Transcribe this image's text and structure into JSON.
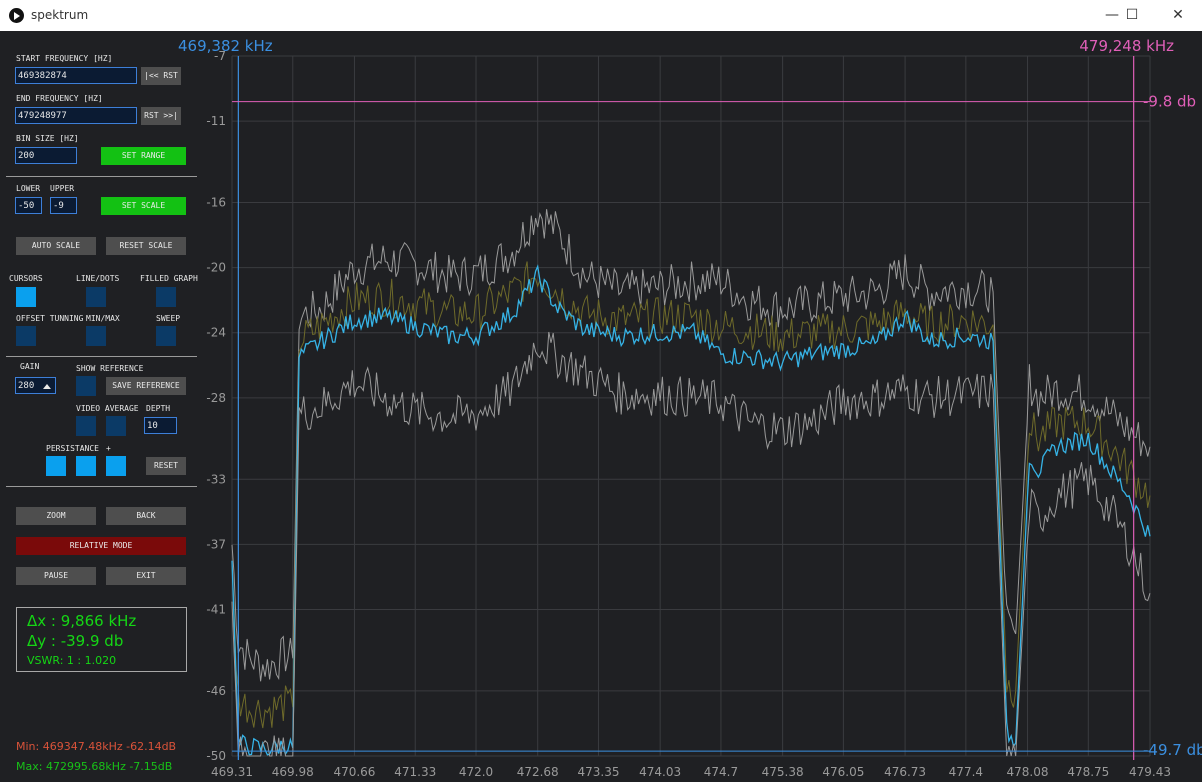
{
  "window": {
    "title": "spektrum",
    "minimize": "—",
    "maximize": "☐",
    "close": "✕"
  },
  "sidebar": {
    "start_label": "START FREQUENCY [HZ]",
    "start_value": "469382874",
    "start_rst": "|<< RST",
    "end_label": "END FREQUENCY [HZ]",
    "end_value": "479248977",
    "end_rst": "RST >>|",
    "bin_label": "BIN SIZE [HZ]",
    "bin_value": "200",
    "set_range": "SET RANGE",
    "lower_label": "LOWER",
    "upper_label": "UPPER",
    "lower_value": "-50",
    "upper_value": "-9",
    "set_scale": "SET SCALE",
    "auto_scale": "AUTO SCALE",
    "reset_scale": "RESET SCALE",
    "cursors_label": "CURSORS",
    "line_dots_label": "LINE/DOTS",
    "filled_graph_label": "FILLED GRAPH",
    "offset_label": "OFFSET TUNNING",
    "minmax_label": "MIN/MAX",
    "sweep_label": "SWEEP",
    "gain_label": "GAIN",
    "gain_value": "280",
    "show_reference_label": "SHOW REFERENCE",
    "save_reference": "SAVE REFERENCE",
    "video_average_label": "VIDEO AVERAGE",
    "depth_label": "DEPTH",
    "depth_value": "10",
    "persistance_label": "PERSISTANCE",
    "plus_label": "+",
    "reset": "RESET",
    "zoom": "ZOOM",
    "back": "BACK",
    "relative_mode": "RELATIVE MODE",
    "pause": "PAUSE",
    "exit": "EXIT",
    "toggles": {
      "cursors": true,
      "line_dots": false,
      "filled_graph": false,
      "offset": false,
      "minmax": false,
      "sweep": false,
      "show_reference": false,
      "video_average_1": false,
      "video_average_2": false,
      "persist_1": true,
      "persist_2": true,
      "persist_3": true
    }
  },
  "readout": {
    "dx": "Δx : 9,866 kHz",
    "dy": "Δy : -39.9 db",
    "vswr": "VSWR: 1 : 1.020",
    "min": "Min: 469347.48kHz -62.14dB",
    "max": "Max: 472995.68kHz -7.15dB"
  },
  "colors": {
    "blue_cursor": "#3b8fe0",
    "pink_cursor": "#e05fb8",
    "trace": "#36b3e6",
    "minmax": "#9a9a9a",
    "average": "#6e6a2a",
    "min_text": "#d9533a",
    "max_text": "#18c118"
  },
  "chart_data": {
    "type": "line",
    "xlim": [
      469.31,
      479.43
    ],
    "ylim": [
      -50,
      -7
    ],
    "x_ticks": [
      "469.31",
      "469.98",
      "470.66",
      "471.33",
      "472.0",
      "472.68",
      "473.35",
      "474.03",
      "474.7",
      "475.38",
      "476.05",
      "476.73",
      "477.4",
      "478.08",
      "478.75",
      "479.43"
    ],
    "y_ticks": [
      "-7",
      "-11",
      "-16",
      "-20",
      "-24",
      "-28",
      "-33",
      "-37",
      "-41",
      "-46",
      "-50"
    ],
    "grid": true,
    "cursor_start_label": "469,382 kHz",
    "cursor_end_label": "479,248 kHz",
    "cursor_start_x": 469.38,
    "cursor_end_x": 479.25,
    "cursor_top_label": "-9.8 db",
    "cursor_bottom_label": "-49.7 db",
    "cursor_top_y": -9.8,
    "cursor_bottom_y": -49.7,
    "series": [
      {
        "role": "max",
        "x": [
          469.31,
          469.38,
          469.5,
          469.7,
          469.9,
          469.98,
          470.05,
          470.3,
          470.66,
          471.0,
          471.33,
          471.7,
          472.0,
          472.4,
          472.68,
          472.9,
          473.2,
          473.6,
          474.03,
          474.4,
          474.7,
          475.0,
          475.38,
          475.7,
          476.05,
          476.4,
          476.73,
          477.0,
          477.4,
          477.7,
          477.85,
          477.95,
          478.1,
          478.2,
          478.4,
          478.75,
          479.0,
          479.2,
          479.43
        ],
        "values": [
          -37,
          -43,
          -44,
          -44.5,
          -43.8,
          -44,
          -23,
          -22.5,
          -20,
          -19.5,
          -19.8,
          -20.5,
          -20.4,
          -19,
          -16.5,
          -17.8,
          -20.5,
          -21.5,
          -21.2,
          -20.8,
          -20.8,
          -22,
          -22.5,
          -22.2,
          -21.8,
          -21.5,
          -20.2,
          -21.5,
          -21.2,
          -21.5,
          -42,
          -42.5,
          -27,
          -28,
          -27.5,
          -27.8,
          -29,
          -30,
          -31
        ]
      },
      {
        "role": "average",
        "x": [
          469.31,
          469.38,
          469.5,
          469.7,
          469.9,
          469.98,
          470.05,
          470.3,
          470.66,
          471.0,
          471.33,
          471.7,
          472.0,
          472.4,
          472.68,
          472.9,
          473.2,
          473.6,
          474.03,
          474.4,
          474.7,
          475.0,
          475.38,
          475.7,
          476.05,
          476.4,
          476.73,
          477.0,
          477.4,
          477.7,
          477.85,
          477.95,
          478.1,
          478.2,
          478.4,
          478.75,
          479.0,
          479.2,
          479.43
        ],
        "values": [
          -39,
          -46.5,
          -47,
          -47.2,
          -46.8,
          -47,
          -24.5,
          -23.5,
          -22,
          -21.8,
          -22.2,
          -22.8,
          -22.8,
          -21.5,
          -20.3,
          -21.5,
          -22.8,
          -23.2,
          -23,
          -23,
          -23.6,
          -23.8,
          -24.2,
          -24,
          -23.8,
          -23.5,
          -22.8,
          -23.5,
          -23.2,
          -23.5,
          -45.5,
          -46,
          -29.5,
          -30.5,
          -29.5,
          -29.5,
          -31,
          -32.5,
          -34
        ]
      },
      {
        "role": "live",
        "x": [
          469.31,
          469.38,
          469.5,
          469.7,
          469.9,
          469.98,
          470.05,
          470.3,
          470.66,
          471.0,
          471.33,
          471.7,
          472.0,
          472.4,
          472.68,
          472.9,
          473.2,
          473.6,
          474.03,
          474.4,
          474.7,
          475.0,
          475.38,
          475.7,
          476.05,
          476.4,
          476.73,
          477.0,
          477.4,
          477.7,
          477.85,
          477.95,
          478.1,
          478.2,
          478.4,
          478.75,
          479.0,
          479.2,
          479.43
        ],
        "values": [
          -38,
          -49.2,
          -49.4,
          -49.6,
          -49.3,
          -49.5,
          -25.5,
          -24.5,
          -23.2,
          -23,
          -23.6,
          -24.2,
          -24.2,
          -22.8,
          -20.5,
          -22.5,
          -23.8,
          -24.2,
          -24,
          -24,
          -25.3,
          -25.5,
          -25.8,
          -25.3,
          -25,
          -24.7,
          -23,
          -24.5,
          -24.2,
          -24.5,
          -48.5,
          -49.2,
          -31.5,
          -32.5,
          -31,
          -30.5,
          -32.5,
          -34,
          -36.5
        ]
      },
      {
        "role": "min",
        "x": [
          469.31,
          469.38,
          469.5,
          469.7,
          469.9,
          469.98,
          470.05,
          470.3,
          470.66,
          471.0,
          471.33,
          471.7,
          472.0,
          472.4,
          472.68,
          472.9,
          473.2,
          473.6,
          474.03,
          474.4,
          474.7,
          475.0,
          475.38,
          475.7,
          476.05,
          476.4,
          476.73,
          477.0,
          477.4,
          477.7,
          477.85,
          477.95,
          478.1,
          478.2,
          478.4,
          478.75,
          479.0,
          479.2,
          479.43
        ],
        "values": [
          -41,
          -50,
          -50,
          -50,
          -50,
          -50,
          -29,
          -28.5,
          -27,
          -28,
          -28.8,
          -29.2,
          -29,
          -27.5,
          -24.5,
          -25.5,
          -26.5,
          -27.8,
          -27.8,
          -28,
          -28.2,
          -29.5,
          -30,
          -29.5,
          -28.2,
          -28,
          -27.5,
          -28,
          -27.8,
          -27.5,
          -50,
          -50,
          -34.5,
          -35.5,
          -34,
          -33,
          -35,
          -37,
          -40
        ]
      }
    ]
  }
}
